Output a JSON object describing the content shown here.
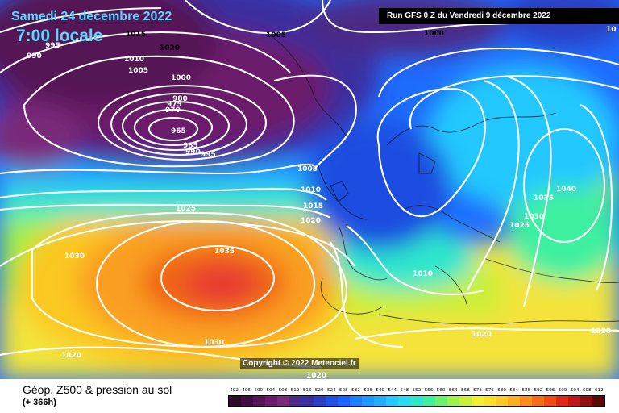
{
  "header": {
    "date": "Samedi 24 decembre 2022",
    "time": "7:00 locale",
    "run": "Run GFS 0 Z du Vendredi 9 décembre 2022"
  },
  "copyright": "Copyright © 2022 Meteociel.fr",
  "footer": {
    "title": "Géop. Z500 & pression au sol",
    "subtitle": "(+ 366h)"
  },
  "scale": {
    "labels": [
      "492",
      "496",
      "500",
      "504",
      "508",
      "512",
      "516",
      "520",
      "524",
      "528",
      "532",
      "536",
      "540",
      "544",
      "548",
      "552",
      "556",
      "560",
      "564",
      "568",
      "572",
      "576",
      "580",
      "584",
      "588",
      "592",
      "596",
      "600",
      "604",
      "608",
      "612"
    ],
    "colors": [
      "#2b0a2b",
      "#3f0d3f",
      "#541454",
      "#6a1a6a",
      "#7a2a7a",
      "#4c2b86",
      "#3a2fa0",
      "#2a3fc4",
      "#1f52e0",
      "#1a64ff",
      "#1b80ff",
      "#1c98ff",
      "#20b0ff",
      "#22c8ff",
      "#28dcf0",
      "#2ee6cc",
      "#3cf0a0",
      "#6cf070",
      "#9ef04a",
      "#c8f038",
      "#eef030",
      "#fbe02a",
      "#fcc824",
      "#fcae1e",
      "#fa8e18",
      "#f66e14",
      "#f04c12",
      "#e02a16",
      "#c01818",
      "#901010",
      "#5a0808"
    ]
  },
  "isobars": [
    {
      "text": "1015",
      "fill": "#000"
    },
    {
      "text": "1020",
      "fill": "#000"
    },
    {
      "text": "1005",
      "fill": "#000"
    },
    {
      "text": "1000",
      "fill": "#000"
    },
    {
      "text": "990",
      "fill": "#fff"
    },
    {
      "text": "995",
      "fill": "#fff"
    },
    {
      "text": "1010",
      "fill": "#fff"
    },
    {
      "text": "1005",
      "fill": "#fff"
    },
    {
      "text": "1000",
      "fill": "#fff"
    },
    {
      "text": "980",
      "fill": "#fff"
    },
    {
      "text": "975",
      "fill": "#fff"
    },
    {
      "text": "970",
      "fill": "#fff"
    },
    {
      "text": "965",
      "fill": "#fff"
    },
    {
      "text": "985",
      "fill": "#fff"
    },
    {
      "text": "990",
      "fill": "#fff"
    },
    {
      "text": "995",
      "fill": "#fff"
    },
    {
      "text": "1005",
      "fill": "#fff"
    },
    {
      "text": "1010",
      "fill": "#fff"
    },
    {
      "text": "1015",
      "fill": "#fff"
    },
    {
      "text": "1020",
      "fill": "#fff"
    },
    {
      "text": "1025",
      "fill": "#fff"
    },
    {
      "text": "1030",
      "fill": "#fff"
    },
    {
      "text": "1035",
      "fill": "#fff"
    },
    {
      "text": "1030",
      "fill": "#fff"
    },
    {
      "text": "1020",
      "fill": "#fff"
    },
    {
      "text": "1020",
      "fill": "#fff"
    },
    {
      "text": "1035",
      "fill": "#fff"
    },
    {
      "text": "1040",
      "fill": "#fff"
    },
    {
      "text": "1030",
      "fill": "#fff"
    },
    {
      "text": "1025",
      "fill": "#fff"
    },
    {
      "text": "1010",
      "fill": "#fff"
    },
    {
      "text": "1020",
      "fill": "#fff"
    },
    {
      "text": "1020",
      "fill": "#fff"
    },
    {
      "text": "10",
      "fill": "#fff"
    }
  ]
}
